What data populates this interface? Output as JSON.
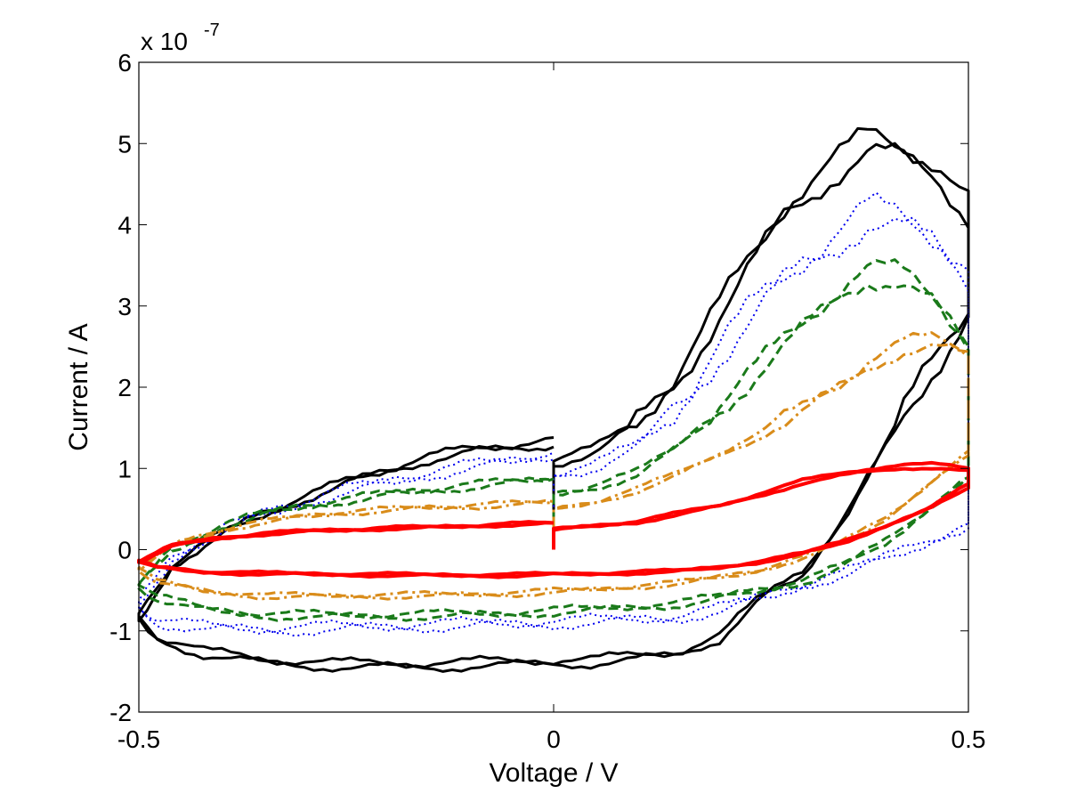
{
  "chart_data": {
    "type": "line",
    "title": "",
    "xlabel": "Voltage / V",
    "ylabel": "Current / A",
    "xlim": [
      -0.5,
      0.5
    ],
    "ylim": [
      -2,
      6
    ],
    "x_ticks": [
      -0.5,
      0,
      0.5
    ],
    "y_ticks": [
      -2,
      -1,
      0,
      1,
      2,
      3,
      4,
      5,
      6
    ],
    "y_multiplier_base": "x 10",
    "y_multiplier_exp": "-7",
    "y_units_scale": 1e-07,
    "grid": false,
    "legend": "none",
    "series": [
      {
        "name": "black-solid",
        "color": "#000000",
        "dash": "solid",
        "width": 3,
        "noise": 0.18,
        "fwd_v": [
          0.0,
          0.05,
          0.1,
          0.15,
          0.2,
          0.25,
          0.28,
          0.33,
          0.38,
          0.42,
          0.46,
          0.5
        ],
        "fwd_i": [
          1.1,
          1.25,
          1.6,
          2.2,
          3.0,
          3.8,
          4.3,
          4.75,
          5.1,
          5.0,
          4.8,
          4.3
        ],
        "rev_v": [
          0.5,
          0.45,
          0.4,
          0.35,
          0.3,
          0.25,
          0.2,
          0.15,
          0.05,
          -0.05,
          -0.15,
          -0.25,
          -0.35,
          -0.42,
          -0.48,
          -0.5
        ],
        "rev_i": [
          3.0,
          2.2,
          1.3,
          0.4,
          -0.3,
          -0.6,
          -1.1,
          -1.3,
          -1.4,
          -1.42,
          -1.45,
          -1.45,
          -1.4,
          -1.3,
          -1.1,
          -0.85
        ],
        "ret_v": [
          -0.5,
          -0.46,
          -0.4,
          -0.35,
          -0.3,
          -0.25,
          -0.2,
          -0.15,
          -0.1,
          -0.05,
          0.0
        ],
        "ret_i": [
          -0.85,
          -0.2,
          0.2,
          0.45,
          0.65,
          0.85,
          1.0,
          1.15,
          1.25,
          1.3,
          1.35
        ]
      },
      {
        "name": "blue-dotted",
        "color": "#0000ee",
        "dash": "dotted",
        "width": 2,
        "noise": 0.22,
        "fwd_v": [
          0.0,
          0.05,
          0.1,
          0.15,
          0.2,
          0.25,
          0.3,
          0.35,
          0.38,
          0.42,
          0.46,
          0.5
        ],
        "fwd_i": [
          0.95,
          1.05,
          1.3,
          1.8,
          2.5,
          3.1,
          3.6,
          4.0,
          4.2,
          4.1,
          3.9,
          3.5
        ],
        "rev_v": [
          0.5,
          0.45,
          0.4,
          0.35,
          0.3,
          0.25,
          0.2,
          0.15,
          0.05,
          -0.05,
          -0.15,
          -0.25,
          -0.35,
          -0.42,
          -0.48,
          -0.5
        ],
        "rev_i": [
          0.3,
          0.1,
          -0.1,
          -0.3,
          -0.45,
          -0.6,
          -0.75,
          -0.85,
          -0.9,
          -0.93,
          -0.95,
          -0.98,
          -1.0,
          -0.98,
          -0.9,
          -0.7
        ],
        "ret_v": [
          -0.5,
          -0.46,
          -0.4,
          -0.35,
          -0.3,
          -0.25,
          -0.2,
          -0.15,
          -0.1,
          -0.05,
          0.0
        ],
        "ret_i": [
          -0.7,
          -0.1,
          0.25,
          0.45,
          0.6,
          0.75,
          0.85,
          0.95,
          1.05,
          1.12,
          1.2
        ]
      },
      {
        "name": "green-dashed",
        "color": "#1a7a1a",
        "dash": "dashed",
        "width": 3,
        "noise": 0.15,
        "fwd_v": [
          0.0,
          0.05,
          0.1,
          0.15,
          0.2,
          0.25,
          0.3,
          0.35,
          0.38,
          0.42,
          0.46,
          0.5
        ],
        "fwd_i": [
          0.7,
          0.8,
          0.95,
          1.3,
          1.8,
          2.3,
          2.8,
          3.3,
          3.5,
          3.4,
          3.1,
          2.6
        ],
        "rev_v": [
          0.5,
          0.45,
          0.4,
          0.35,
          0.3,
          0.25,
          0.2,
          0.15,
          0.05,
          -0.05,
          -0.15,
          -0.25,
          -0.35,
          -0.42,
          -0.48,
          -0.5
        ],
        "rev_i": [
          0.9,
          0.5,
          0.1,
          -0.2,
          -0.4,
          -0.5,
          -0.6,
          -0.68,
          -0.75,
          -0.8,
          -0.82,
          -0.83,
          -0.82,
          -0.75,
          -0.6,
          -0.45
        ],
        "ret_v": [
          -0.5,
          -0.46,
          -0.4,
          -0.35,
          -0.3,
          -0.25,
          -0.2,
          -0.15,
          -0.1,
          -0.05,
          0.0
        ],
        "ret_i": [
          -0.45,
          0.0,
          0.3,
          0.45,
          0.55,
          0.62,
          0.7,
          0.75,
          0.8,
          0.85,
          0.9
        ]
      },
      {
        "name": "orange-dashdot",
        "color": "#d98c1a",
        "dash": "dashdot",
        "width": 3,
        "noise": 0.1,
        "fwd_v": [
          0.0,
          0.05,
          0.1,
          0.15,
          0.2,
          0.25,
          0.3,
          0.35,
          0.38,
          0.42,
          0.46,
          0.5
        ],
        "fwd_i": [
          0.5,
          0.6,
          0.75,
          0.95,
          1.2,
          1.45,
          1.75,
          2.1,
          2.35,
          2.55,
          2.6,
          2.45
        ],
        "rev_v": [
          0.5,
          0.45,
          0.4,
          0.35,
          0.3,
          0.25,
          0.2,
          0.15,
          0.05,
          -0.05,
          -0.15,
          -0.25,
          -0.35,
          -0.42,
          -0.48,
          -0.5
        ],
        "rev_i": [
          1.2,
          0.8,
          0.4,
          0.1,
          -0.1,
          -0.25,
          -0.35,
          -0.42,
          -0.5,
          -0.55,
          -0.57,
          -0.58,
          -0.58,
          -0.52,
          -0.4,
          -0.25
        ],
        "ret_v": [
          -0.5,
          -0.46,
          -0.4,
          -0.35,
          -0.3,
          -0.25,
          -0.2,
          -0.15,
          -0.1,
          -0.05,
          0.0
        ],
        "ret_i": [
          -0.25,
          0.05,
          0.25,
          0.35,
          0.42,
          0.47,
          0.5,
          0.53,
          0.55,
          0.57,
          0.6
        ]
      },
      {
        "name": "red-solid",
        "color": "#ff0000",
        "dash": "solid",
        "width": 4,
        "noise": 0.06,
        "fwd_v": [
          0.0,
          0.05,
          0.1,
          0.15,
          0.2,
          0.25,
          0.3,
          0.35,
          0.38,
          0.42,
          0.46,
          0.5
        ],
        "fwd_i": [
          0.25,
          0.3,
          0.35,
          0.45,
          0.55,
          0.7,
          0.85,
          0.95,
          1.0,
          1.05,
          1.05,
          1.0
        ],
        "rev_v": [
          0.5,
          0.45,
          0.4,
          0.35,
          0.3,
          0.25,
          0.2,
          0.15,
          0.05,
          -0.05,
          -0.15,
          -0.25,
          -0.35,
          -0.42,
          -0.48,
          -0.5
        ],
        "rev_i": [
          0.8,
          0.5,
          0.3,
          0.1,
          -0.05,
          -0.15,
          -0.22,
          -0.27,
          -0.3,
          -0.32,
          -0.32,
          -0.31,
          -0.3,
          -0.28,
          -0.22,
          -0.15
        ],
        "ret_v": [
          -0.5,
          -0.46,
          -0.4,
          -0.35,
          -0.3,
          -0.25,
          -0.2,
          -0.15,
          -0.1,
          -0.05,
          0.0
        ],
        "ret_i": [
          -0.15,
          0.05,
          0.15,
          0.2,
          0.23,
          0.25,
          0.27,
          0.28,
          0.3,
          0.32,
          0.33
        ]
      }
    ]
  }
}
